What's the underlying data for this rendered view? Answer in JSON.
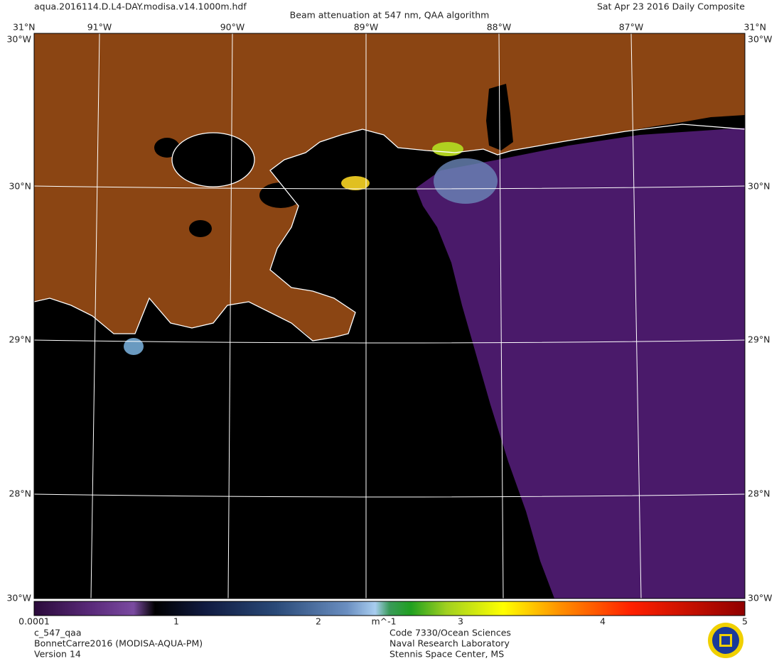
{
  "header": {
    "filename": "aqua.2016114.D.L4-DAY.modisa.v14.1000m.hdf",
    "title": "Beam attenuation at 547 nm, QAA algorithm",
    "date": "Sat Apr 23 2016 Daily Composite"
  },
  "map": {
    "top_labels": [
      "31°N",
      "91°W",
      "90°W",
      "89°W",
      "88°W",
      "87°W",
      "31°N"
    ],
    "left_labels": [
      "30°N",
      "29°N",
      "28°N"
    ],
    "right_labels": [
      "30°N",
      "29°N",
      "28°N"
    ],
    "corner_labels": [
      "30°W",
      "30°W",
      "30°W",
      "30°W"
    ]
  },
  "colorbar": {
    "ticks": [
      "0.0001",
      "1",
      "2",
      "m^-1",
      "3",
      "4",
      "5"
    ]
  },
  "footer": {
    "left": [
      "c_547_qaa",
      "BonnetCarre2016 (MODISA-AQUA-PM)",
      "Version 14"
    ],
    "center": [
      "Code 7330/Ocean Sciences",
      "Naval Research Laboratory",
      "Stennis Space Center, MS"
    ]
  }
}
